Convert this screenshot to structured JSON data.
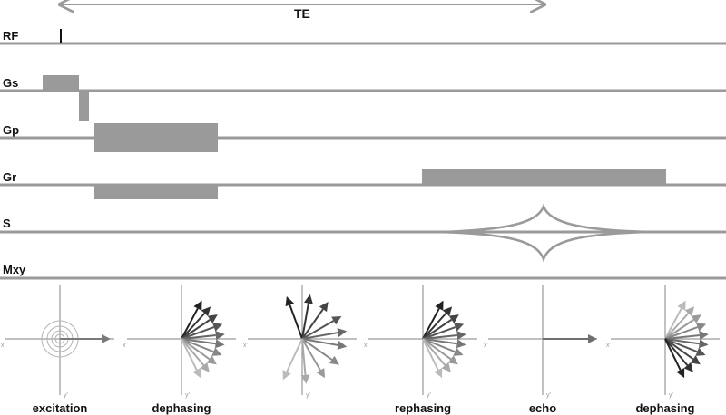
{
  "te_label": "TE",
  "rows": [
    {
      "id": "rf",
      "label": "RF"
    },
    {
      "id": "gs",
      "label": "Gs"
    },
    {
      "id": "gp",
      "label": "Gp"
    },
    {
      "id": "gr",
      "label": "Gr"
    },
    {
      "id": "s",
      "label": "S"
    },
    {
      "id": "mxy",
      "label": "Mxy"
    }
  ],
  "axis_labels": {
    "x": "x'",
    "y": "y'"
  },
  "phases": [
    {
      "id": "excitation",
      "caption": "excitation"
    },
    {
      "id": "dephasing-1",
      "caption": "dephasing"
    },
    {
      "id": "spread",
      "caption": ""
    },
    {
      "id": "rephasing",
      "caption": "rephasing"
    },
    {
      "id": "echo",
      "caption": "echo"
    },
    {
      "id": "dephasing-2",
      "caption": "dephasing"
    }
  ],
  "colors": {
    "line": "#9a9a9a",
    "arrow_dark": "#222222",
    "arrow_light": "#bbbbbb",
    "text": "#111111"
  }
}
